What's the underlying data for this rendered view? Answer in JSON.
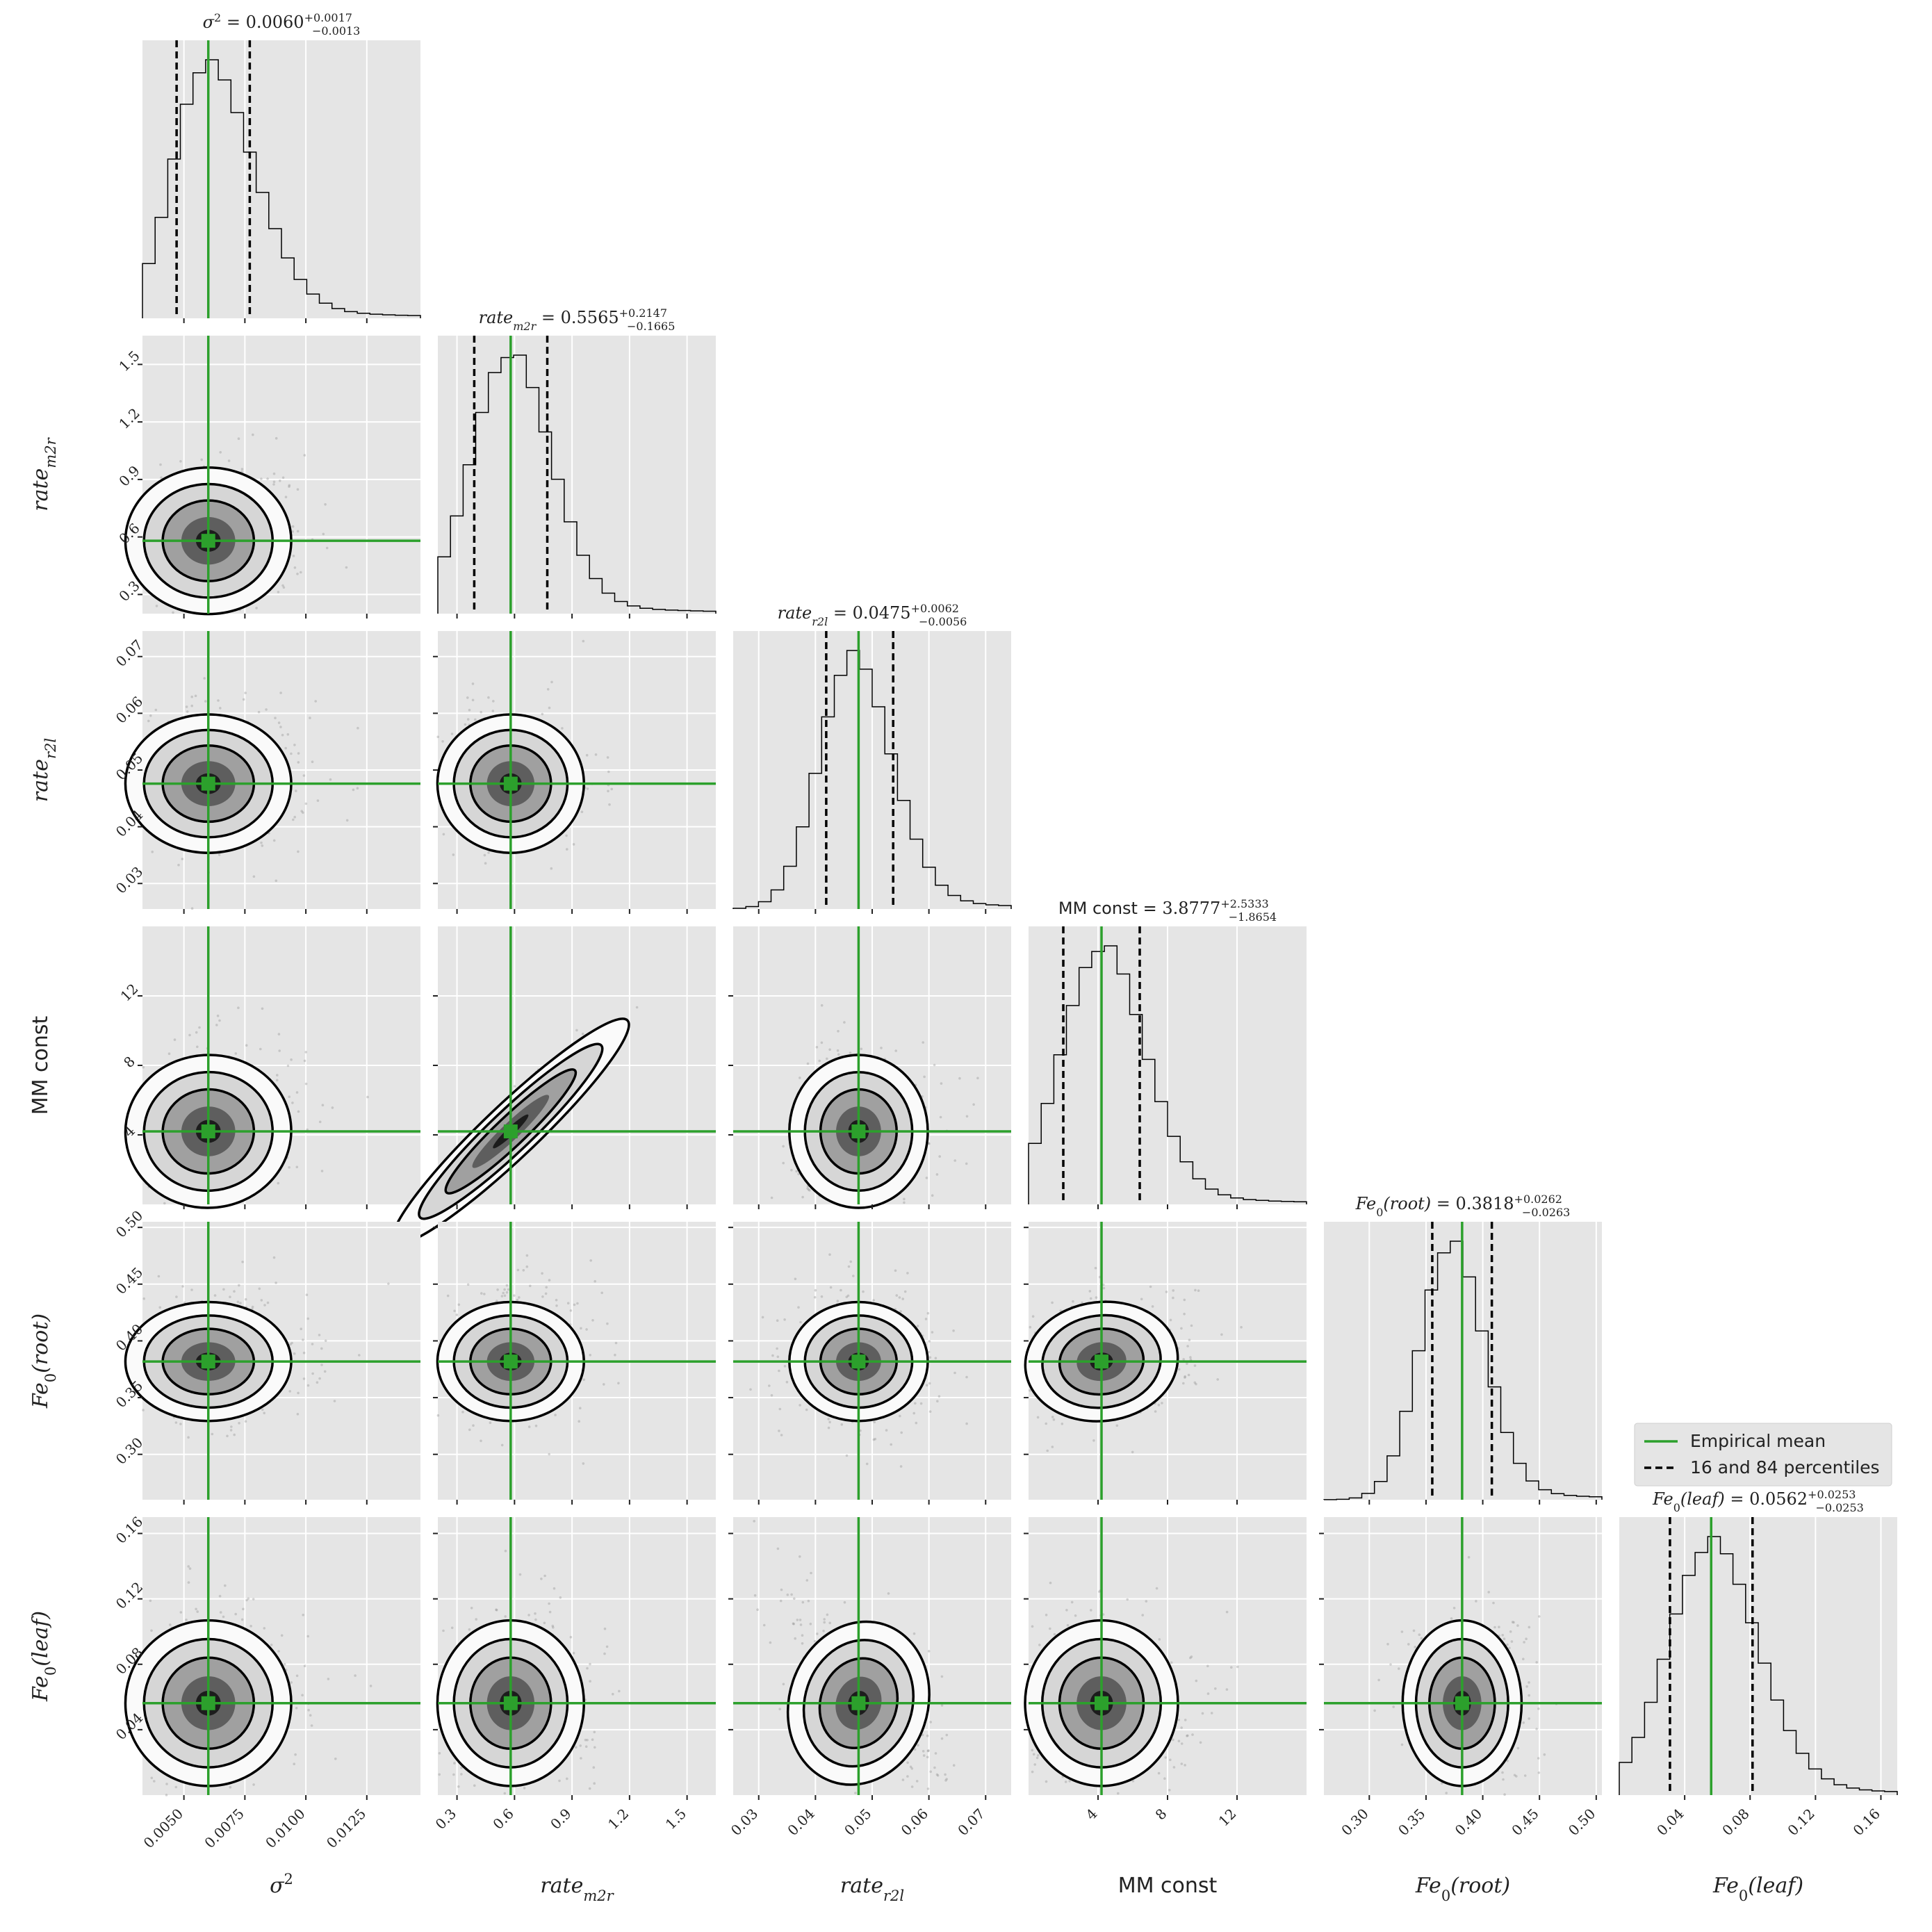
{
  "chart_data": {
    "type": "corner",
    "parameters": [
      {
        "key": "sigma2",
        "label_html": "σ²",
        "axis_label": "σ²",
        "title_name": "σ²",
        "value": "0.0060",
        "plus": "+0.0017",
        "minus": "−0.0013",
        "range": [
          0.0033,
          0.0147
        ],
        "ticks": [
          0.005,
          0.0075,
          0.01,
          0.0125
        ],
        "tick_labels": [
          "0.0050",
          "0.0075",
          "0.0100",
          "0.0125"
        ],
        "mean": 0.006,
        "q16": 0.0047,
        "q84": 0.0077,
        "italic": true
      },
      {
        "key": "rate_m2r",
        "axis_label": "rate",
        "axis_sub": "m2r",
        "title_name": "rate",
        "title_sub": "m2r",
        "value": "0.5565",
        "plus": "+0.2147",
        "minus": "−0.1665",
        "range": [
          0.2,
          1.65
        ],
        "ticks": [
          0.3,
          0.6,
          0.9,
          1.2,
          1.5
        ],
        "tick_labels": [
          "0.3",
          "0.6",
          "0.9",
          "1.2",
          "1.5"
        ],
        "mean": 0.58,
        "q16": 0.39,
        "q84": 0.771,
        "italic": true
      },
      {
        "key": "rate_r2l",
        "axis_label": "rate",
        "axis_sub": "r2l",
        "title_name": "rate",
        "title_sub": "r2l",
        "value": "0.0475",
        "plus": "+0.0062",
        "minus": "−0.0056",
        "range": [
          0.0255,
          0.0745
        ],
        "ticks": [
          0.03,
          0.04,
          0.05,
          0.06,
          0.07
        ],
        "tick_labels": [
          "0.03",
          "0.04",
          "0.05",
          "0.06",
          "0.07"
        ],
        "mean": 0.0476,
        "q16": 0.0419,
        "q84": 0.0537,
        "italic": true
      },
      {
        "key": "mm_const",
        "axis_label": "MM const",
        "title_name": "MM const",
        "value": "3.8777",
        "plus": "+2.5333",
        "minus": "−1.8654",
        "range": [
          0,
          16
        ],
        "ticks": [
          4,
          8,
          12
        ],
        "tick_labels": [
          "4",
          "8",
          "12"
        ],
        "mean": 4.2,
        "q16": 2.0,
        "q84": 6.4,
        "italic": false
      },
      {
        "key": "fe0_root",
        "axis_label": "Fe",
        "axis_sub": "0",
        "axis_tail": "(root)",
        "title_name": "Fe",
        "title_sub": "0",
        "title_tail": "(root)",
        "value": "0.3818",
        "plus": "+0.0262",
        "minus": "−0.0263",
        "range": [
          0.26,
          0.505
        ],
        "ticks": [
          0.3,
          0.35,
          0.4,
          0.45,
          0.5
        ],
        "tick_labels": [
          "0.30",
          "0.35",
          "0.40",
          "0.45",
          "0.50"
        ],
        "mean": 0.3818,
        "q16": 0.3555,
        "q84": 0.408,
        "italic": true
      },
      {
        "key": "fe0_leaf",
        "axis_label": "Fe",
        "axis_sub": "0",
        "axis_tail": "(leaf)",
        "title_name": "Fe",
        "title_sub": "0",
        "title_tail": "(leaf)",
        "value": "0.0562",
        "plus": "+0.0253",
        "minus": "−0.0253",
        "range": [
          0.0,
          0.17
        ],
        "ticks": [
          0.04,
          0.08,
          0.12,
          0.16
        ],
        "tick_labels": [
          "0.04",
          "0.08",
          "0.12",
          "0.16"
        ],
        "mean": 0.0562,
        "q16": 0.031,
        "q84": 0.0815,
        "italic": true
      }
    ],
    "y_axis_ticks": {
      "rate_m2r": {
        "ticks": [
          0.3,
          0.6,
          0.9,
          1.2,
          1.5
        ],
        "tick_labels": [
          "0.3",
          "0.6",
          "0.9",
          "1.2",
          "1.5"
        ]
      },
      "rate_r2l": {
        "ticks": [
          0.03,
          0.04,
          0.05,
          0.06,
          0.07
        ],
        "tick_labels": [
          "0.03",
          "0.04",
          "0.05",
          "0.06",
          "0.07"
        ]
      },
      "mm_const": {
        "ticks": [
          4,
          8,
          12
        ],
        "tick_labels": [
          "4",
          "8",
          "12"
        ]
      },
      "fe0_root": {
        "ticks": [
          0.3,
          0.35,
          0.4,
          0.45,
          0.5
        ],
        "tick_labels": [
          "0.30",
          "0.35",
          "0.40",
          "0.45",
          "0.50"
        ]
      },
      "fe0_leaf": {
        "ticks": [
          0.04,
          0.08,
          0.12,
          0.16
        ],
        "tick_labels": [
          "0.04",
          "0.08",
          "0.12",
          "0.16"
        ]
      }
    },
    "correlations": {
      "rate_m2r|mm_const": 0.95,
      "rate_r2l|fe0_leaf": -0.6,
      "sigma2|mm_const": 0.1,
      "mm_const|fe0_root": 0.2
    },
    "legend": {
      "entries": [
        {
          "label": "Empirical mean",
          "style": "solid",
          "color": "#2ca02c"
        },
        {
          "label": "16 and 84 percentiles",
          "style": "dashed",
          "color": "#000000"
        }
      ],
      "placement": "right"
    },
    "grid": true,
    "colors": {
      "panel_bg": "#e5e5e5",
      "mean_line": "#2ca02c",
      "quantile": "#000000",
      "contour": "#000000",
      "scatter": "#8a8a8a"
    }
  }
}
